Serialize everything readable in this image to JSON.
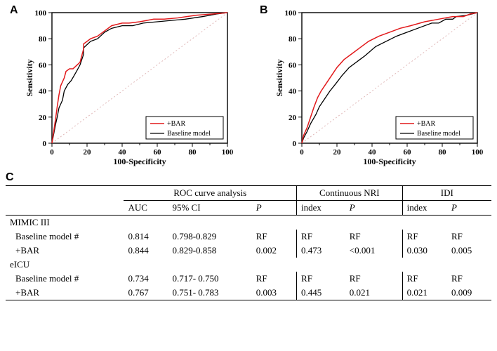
{
  "panels": {
    "A": {
      "label": "A",
      "xlabel": "100-Specificity",
      "ylabel": "Sensitivity",
      "xlim": [
        0,
        100
      ],
      "ylim": [
        0,
        100
      ],
      "ticks": [
        0,
        20,
        40,
        60,
        80,
        100
      ],
      "axis_fontsize": 11,
      "extra_xticks": [
        10,
        30,
        50,
        70,
        90
      ],
      "background": "#ffffff",
      "axis_color": "#000000",
      "diag_color": "#e0b8b8",
      "legend": {
        "box_border": "#000000",
        "items": [
          {
            "label": "+BAR",
            "color": "#e21a1c",
            "lw": 1.4
          },
          {
            "label": "Baseline model",
            "color": "#000000",
            "lw": 1.2
          }
        ]
      },
      "curves": {
        "bar": {
          "color": "#e21a1c",
          "lw": 1.5,
          "points": [
            [
              0,
              0
            ],
            [
              1,
              9
            ],
            [
              2,
              18
            ],
            [
              3,
              28
            ],
            [
              4,
              37
            ],
            [
              5,
              44
            ],
            [
              7,
              50
            ],
            [
              8,
              55
            ],
            [
              10,
              57
            ],
            [
              12,
              57
            ],
            [
              16,
              62
            ],
            [
              18,
              72
            ],
            [
              18,
              76
            ],
            [
              22,
              80
            ],
            [
              26,
              82
            ],
            [
              30,
              86
            ],
            [
              34,
              90
            ],
            [
              40,
              92
            ],
            [
              44,
              92
            ],
            [
              50,
              93
            ],
            [
              58,
              95
            ],
            [
              64,
              95
            ],
            [
              72,
              96
            ],
            [
              82,
              98
            ],
            [
              92,
              99
            ],
            [
              100,
              100
            ]
          ]
        },
        "baseline": {
          "color": "#000000",
          "lw": 1.3,
          "points": [
            [
              0,
              0
            ],
            [
              1,
              7
            ],
            [
              2,
              14
            ],
            [
              3,
              20
            ],
            [
              4,
              27
            ],
            [
              6,
              33
            ],
            [
              7,
              40
            ],
            [
              9,
              45
            ],
            [
              11,
              48
            ],
            [
              14,
              55
            ],
            [
              16,
              60
            ],
            [
              18,
              68
            ],
            [
              18,
              73
            ],
            [
              22,
              78
            ],
            [
              26,
              80
            ],
            [
              30,
              85
            ],
            [
              34,
              88
            ],
            [
              40,
              90
            ],
            [
              46,
              90
            ],
            [
              52,
              92
            ],
            [
              60,
              93
            ],
            [
              68,
              94
            ],
            [
              76,
              95
            ],
            [
              86,
              97
            ],
            [
              94,
              99
            ],
            [
              100,
              100
            ]
          ]
        }
      }
    },
    "B": {
      "label": "B",
      "xlabel": "100-Specificity",
      "ylabel": "Sensitivity",
      "xlim": [
        0,
        100
      ],
      "ylim": [
        0,
        100
      ],
      "ticks": [
        0,
        20,
        40,
        60,
        80,
        100
      ],
      "axis_fontsize": 11,
      "extra_xticks": [
        10,
        30,
        50,
        70,
        90
      ],
      "background": "#ffffff",
      "axis_color": "#000000",
      "diag_color": "#e0b8b8",
      "legend": {
        "box_border": "#000000",
        "items": [
          {
            "label": "+BAR",
            "color": "#e21a1c",
            "lw": 1.4
          },
          {
            "label": "Baseline model",
            "color": "#000000",
            "lw": 1.2
          }
        ]
      },
      "curves": {
        "bar": {
          "color": "#e21a1c",
          "lw": 1.5,
          "points": [
            [
              0,
              0
            ],
            [
              1,
              6
            ],
            [
              3,
              12
            ],
            [
              5,
              20
            ],
            [
              7,
              28
            ],
            [
              9,
              35
            ],
            [
              11,
              40
            ],
            [
              14,
              46
            ],
            [
              17,
              52
            ],
            [
              20,
              58
            ],
            [
              24,
              64
            ],
            [
              28,
              68
            ],
            [
              32,
              72
            ],
            [
              38,
              78
            ],
            [
              44,
              82
            ],
            [
              50,
              85
            ],
            [
              56,
              88
            ],
            [
              62,
              90
            ],
            [
              70,
              93
            ],
            [
              78,
              95
            ],
            [
              86,
              97
            ],
            [
              92,
              97
            ],
            [
              96,
              99
            ],
            [
              100,
              100
            ]
          ]
        },
        "baseline": {
          "color": "#000000",
          "lw": 1.3,
          "points": [
            [
              0,
              0
            ],
            [
              1,
              4
            ],
            [
              3,
              9
            ],
            [
              5,
              15
            ],
            [
              8,
              22
            ],
            [
              10,
              28
            ],
            [
              13,
              34
            ],
            [
              16,
              40
            ],
            [
              19,
              45
            ],
            [
              23,
              52
            ],
            [
              27,
              58
            ],
            [
              32,
              63
            ],
            [
              36,
              67
            ],
            [
              42,
              74
            ],
            [
              48,
              78
            ],
            [
              54,
              82
            ],
            [
              60,
              85
            ],
            [
              66,
              88
            ],
            [
              74,
              92
            ],
            [
              78,
              92
            ],
            [
              82,
              95
            ],
            [
              86,
              95
            ],
            [
              88,
              97
            ],
            [
              94,
              98
            ],
            [
              100,
              100
            ]
          ]
        }
      }
    }
  },
  "table": {
    "section_label": "C",
    "group_headers": [
      "ROC curve analysis",
      "Continuous NRI",
      "IDI"
    ],
    "sub_headers": [
      "AUC",
      "95% CI",
      "P",
      "index",
      "P",
      "index",
      "P"
    ],
    "rows": [
      {
        "label": "MIMIC III",
        "group": true
      },
      {
        "label": "Baseline model #",
        "cells": [
          "0.814",
          "0.798-0.829",
          "RF",
          "RF",
          "RF",
          "RF",
          "RF"
        ]
      },
      {
        "label": "+BAR",
        "cells": [
          "0.844",
          "0.829-0.858",
          "0.002",
          "0.473",
          "<0.001",
          "0.030",
          "0.005"
        ]
      },
      {
        "label": "eICU",
        "group": true
      },
      {
        "label": "Baseline model #",
        "cells": [
          "0.734",
          "0.717- 0.750",
          "RF",
          "RF",
          "RF",
          "RF",
          "RF"
        ]
      },
      {
        "label": "+BAR",
        "cells": [
          "0.767",
          "0.751- 0.783",
          "0.003",
          "0.445",
          "0.021",
          "0.021",
          "0.009"
        ]
      }
    ]
  }
}
